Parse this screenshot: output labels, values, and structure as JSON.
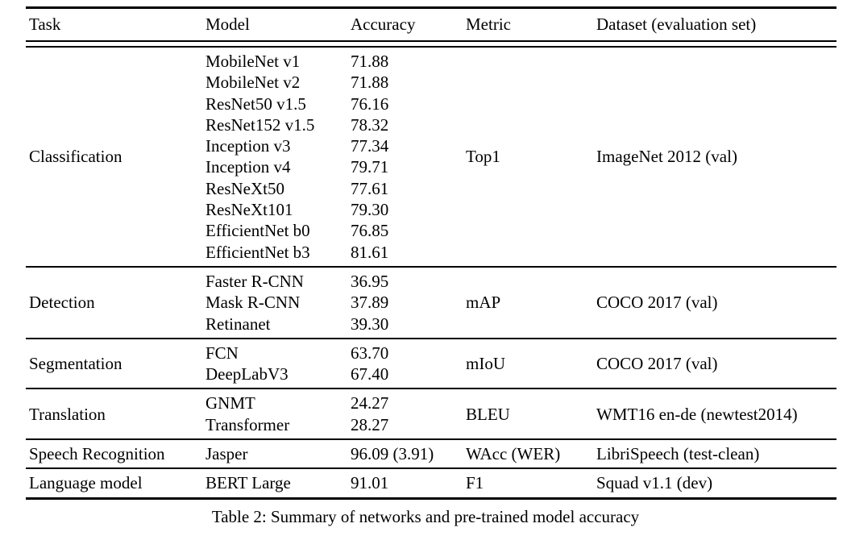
{
  "table": {
    "headers": {
      "task": "Task",
      "model": "Model",
      "accuracy": "Accuracy",
      "metric": "Metric",
      "dataset": "Dataset (evaluation set)"
    },
    "sections": [
      {
        "task": "Classification",
        "metric": "Top1",
        "dataset": "ImageNet 2012 (val)",
        "models": [
          {
            "name": "MobileNet v1",
            "accuracy": "71.88"
          },
          {
            "name": "MobileNet v2",
            "accuracy": "71.88"
          },
          {
            "name": "ResNet50 v1.5",
            "accuracy": "76.16"
          },
          {
            "name": "ResNet152 v1.5",
            "accuracy": "78.32"
          },
          {
            "name": "Inception v3",
            "accuracy": "77.34"
          },
          {
            "name": "Inception v4",
            "accuracy": "79.71"
          },
          {
            "name": "ResNeXt50",
            "accuracy": "77.61"
          },
          {
            "name": "ResNeXt101",
            "accuracy": "79.30"
          },
          {
            "name": "EfficientNet b0",
            "accuracy": "76.85"
          },
          {
            "name": "EfficientNet b3",
            "accuracy": "81.61"
          }
        ]
      },
      {
        "task": "Detection",
        "metric": "mAP",
        "dataset": "COCO 2017 (val)",
        "models": [
          {
            "name": "Faster R-CNN",
            "accuracy": "36.95"
          },
          {
            "name": "Mask R-CNN",
            "accuracy": "37.89"
          },
          {
            "name": "Retinanet",
            "accuracy": "39.30"
          }
        ]
      },
      {
        "task": "Segmentation",
        "metric": "mIoU",
        "dataset": "COCO 2017 (val)",
        "models": [
          {
            "name": "FCN",
            "accuracy": "63.70"
          },
          {
            "name": "DeepLabV3",
            "accuracy": "67.40"
          }
        ]
      },
      {
        "task": "Translation",
        "metric": "BLEU",
        "dataset": "WMT16 en-de (newtest2014)",
        "models": [
          {
            "name": "GNMT",
            "accuracy": "24.27"
          },
          {
            "name": "Transformer",
            "accuracy": "28.27"
          }
        ]
      },
      {
        "task": "Speech Recognition",
        "metric": "WAcc (WER)",
        "dataset": "LibriSpeech (test-clean)",
        "models": [
          {
            "name": "Jasper",
            "accuracy": "96.09 (3.91)"
          }
        ]
      },
      {
        "task": "Language model",
        "metric": "F1",
        "dataset": "Squad v1.1 (dev)",
        "models": [
          {
            "name": "BERT Large",
            "accuracy": "91.01"
          }
        ]
      }
    ],
    "caption": "Table 2: Summary of networks and pre-trained model accuracy"
  }
}
